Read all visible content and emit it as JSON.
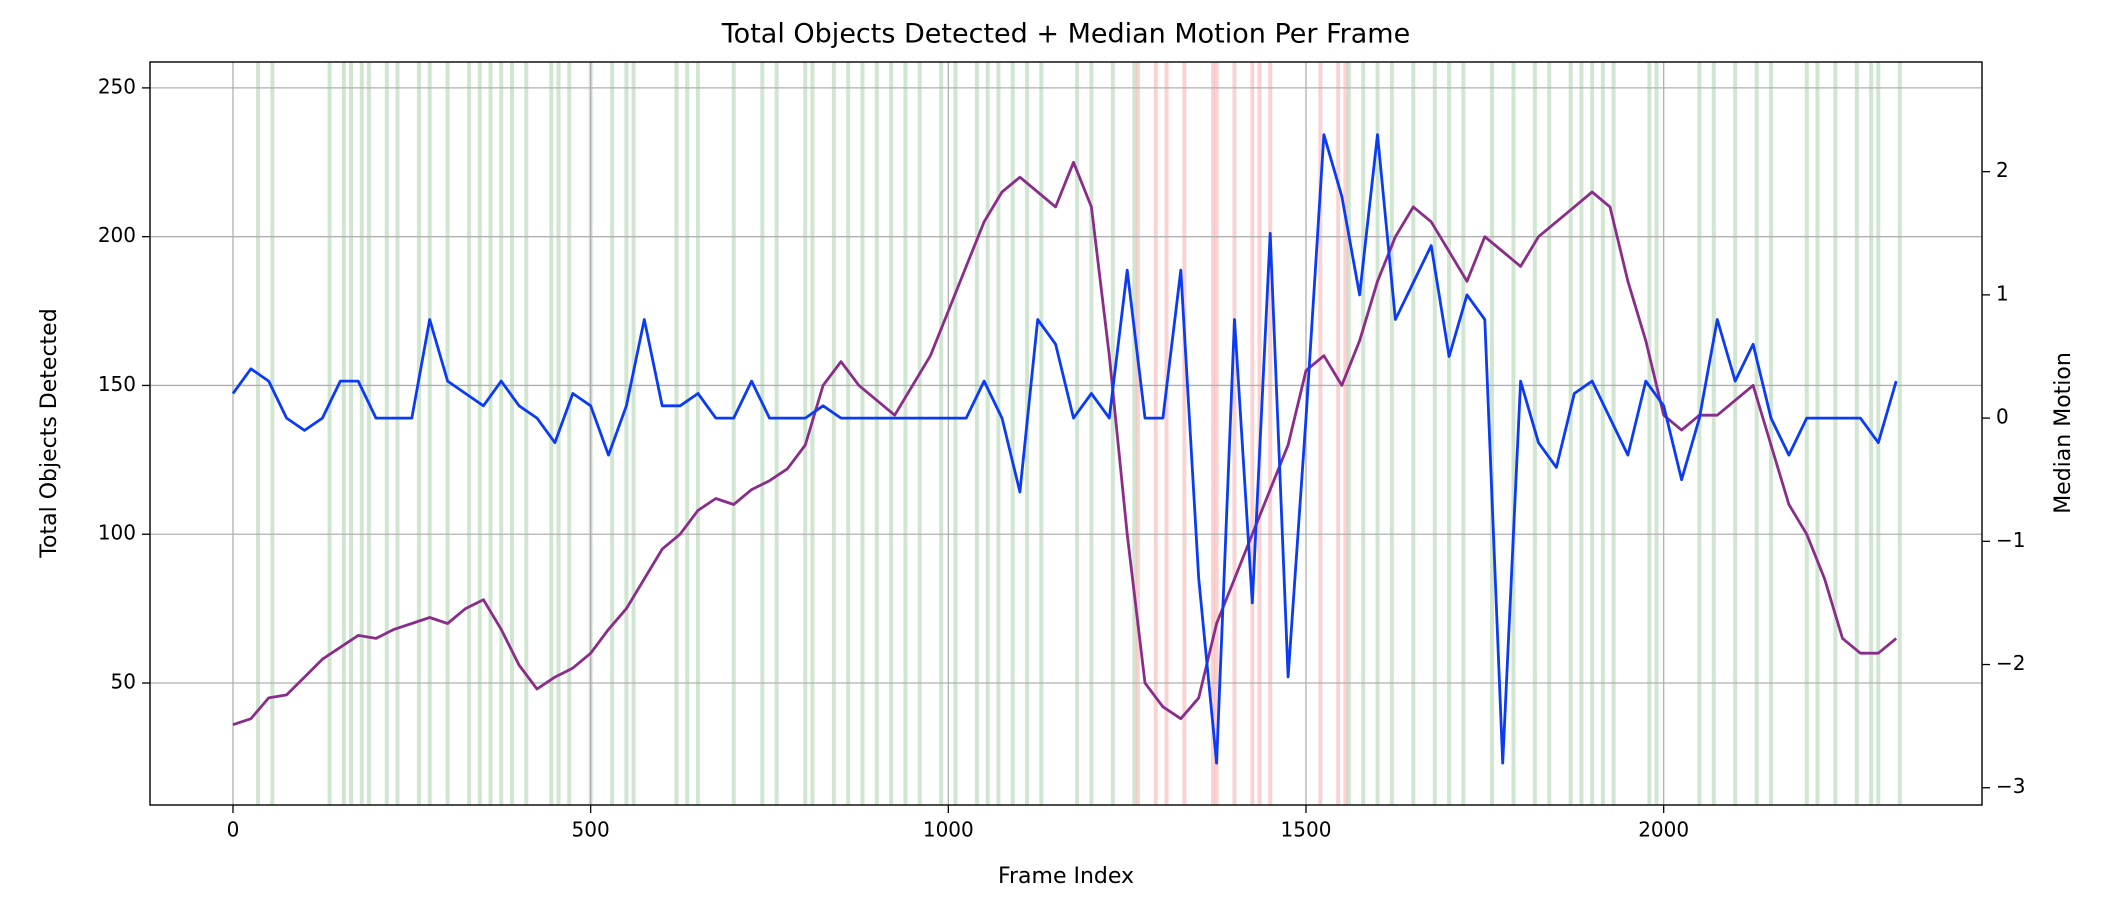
{
  "chart_data": {
    "type": "line",
    "title": "Total Objects Detected + Median Motion Per Frame",
    "xlabel": "Frame Index",
    "ylabel": "Total Objects Detected",
    "y2label": "Median Motion",
    "x": [
      0,
      25,
      50,
      75,
      100,
      125,
      150,
      175,
      200,
      225,
      250,
      275,
      300,
      325,
      350,
      375,
      400,
      425,
      450,
      475,
      500,
      525,
      550,
      575,
      600,
      625,
      650,
      675,
      700,
      725,
      750,
      775,
      800,
      825,
      850,
      875,
      900,
      925,
      950,
      975,
      1000,
      1025,
      1050,
      1075,
      1100,
      1125,
      1150,
      1175,
      1200,
      1225,
      1250,
      1275,
      1300,
      1325,
      1350,
      1375,
      1400,
      1425,
      1450,
      1475,
      1500,
      1525,
      1550,
      1575,
      1600,
      1625,
      1650,
      1675,
      1700,
      1725,
      1750,
      1775,
      1800,
      1825,
      1850,
      1875,
      1900,
      1925,
      1950,
      1975,
      2000,
      2025,
      2050,
      2075,
      2100,
      2125,
      2150,
      2175,
      2200,
      2225,
      2250,
      2275,
      2300,
      2325
    ],
    "series": [
      {
        "name": "Total Objects Detected",
        "color": "#8a2d8a",
        "axis": "y",
        "values": [
          36,
          38,
          45,
          46,
          52,
          58,
          62,
          66,
          65,
          68,
          70,
          72,
          70,
          75,
          78,
          68,
          56,
          48,
          52,
          55,
          60,
          68,
          75,
          85,
          95,
          100,
          108,
          112,
          110,
          115,
          118,
          122,
          130,
          150,
          158,
          150,
          145,
          140,
          150,
          160,
          175,
          190,
          205,
          215,
          220,
          215,
          210,
          225,
          210,
          160,
          100,
          50,
          42,
          38,
          45,
          70,
          85,
          100,
          115,
          130,
          155,
          160,
          150,
          165,
          185,
          200,
          210,
          205,
          195,
          185,
          200,
          195,
          190,
          200,
          205,
          210,
          215,
          210,
          185,
          165,
          140,
          135,
          140,
          140,
          145,
          150,
          130,
          110,
          100,
          85,
          65,
          60,
          60,
          65
        ]
      },
      {
        "name": "Median Motion",
        "color": "#0b3bf5",
        "axis": "y2",
        "values": [
          0.2,
          0.4,
          0.3,
          0,
          -0.1,
          0,
          0.3,
          0.3,
          0,
          0,
          0,
          0.8,
          0.3,
          0.2,
          0.1,
          0.3,
          0.1,
          0,
          -0.2,
          0.2,
          0.1,
          -0.3,
          0.1,
          0.8,
          0.1,
          0.1,
          0.2,
          0,
          0,
          0.3,
          0,
          0,
          0,
          0.1,
          0,
          0,
          0,
          0,
          0,
          0,
          0,
          0,
          0.3,
          0,
          -0.6,
          0.8,
          0.6,
          0,
          0.2,
          0,
          1.2,
          0,
          0,
          1.2,
          -1.3,
          -2.8,
          0.8,
          -1.5,
          1.5,
          -2.1,
          0,
          2.3,
          1.8,
          1.0,
          2.3,
          0.8,
          1.1,
          1.4,
          0.5,
          1.0,
          0.8,
          -2.8,
          0.3,
          -0.2,
          -0.4,
          0.2,
          0.3,
          0,
          -0.3,
          0.3,
          0.1,
          -0.5,
          0,
          0.8,
          0.3,
          0.6,
          0,
          -0.3,
          0,
          0,
          0,
          0,
          -0.2,
          0.3
        ]
      }
    ],
    "spans": [
      {
        "color": "#2e8b2e",
        "frames": [
          35,
          55,
          135,
          155,
          165,
          180,
          190,
          215,
          230,
          260,
          275,
          300,
          330,
          345,
          360,
          375,
          390,
          410,
          445,
          455,
          470,
          500,
          530,
          550,
          560,
          620,
          635,
          650,
          700,
          740,
          760,
          800,
          810,
          840,
          860,
          880,
          900,
          920,
          940,
          960,
          990,
          1010,
          1040,
          1055,
          1070,
          1090,
          1110,
          1130,
          1180,
          1200,
          1230,
          1260,
          1560,
          1580,
          1600,
          1620,
          1650,
          1680,
          1700,
          1720,
          1760,
          1790,
          1820,
          1840,
          1870,
          1885,
          1900,
          1915,
          1930,
          1980,
          1990,
          2050,
          2070,
          2100,
          2130,
          2150,
          2200,
          2215,
          2240,
          2270,
          2290,
          2300,
          2330
        ]
      },
      {
        "color": "#e83030",
        "frames": [
          1265,
          1290,
          1305,
          1330,
          1370,
          1375,
          1400,
          1425,
          1435,
          1450,
          1520,
          1545,
          1555
        ]
      }
    ],
    "xlim": [
      -116,
      2445
    ],
    "xticks": [
      0,
      500,
      1000,
      1500,
      2000
    ],
    "ylim": [
      9,
      258.7
    ],
    "yticks": [
      50,
      100,
      150,
      200,
      250
    ],
    "y2lim": [
      -3.14,
      2.89
    ],
    "y2ticks": [
      {
        "value": -3,
        "label": "−3"
      },
      {
        "value": -2,
        "label": "−2"
      },
      {
        "value": -1,
        "label": "−1"
      },
      0,
      1,
      2
    ],
    "grid": true
  }
}
